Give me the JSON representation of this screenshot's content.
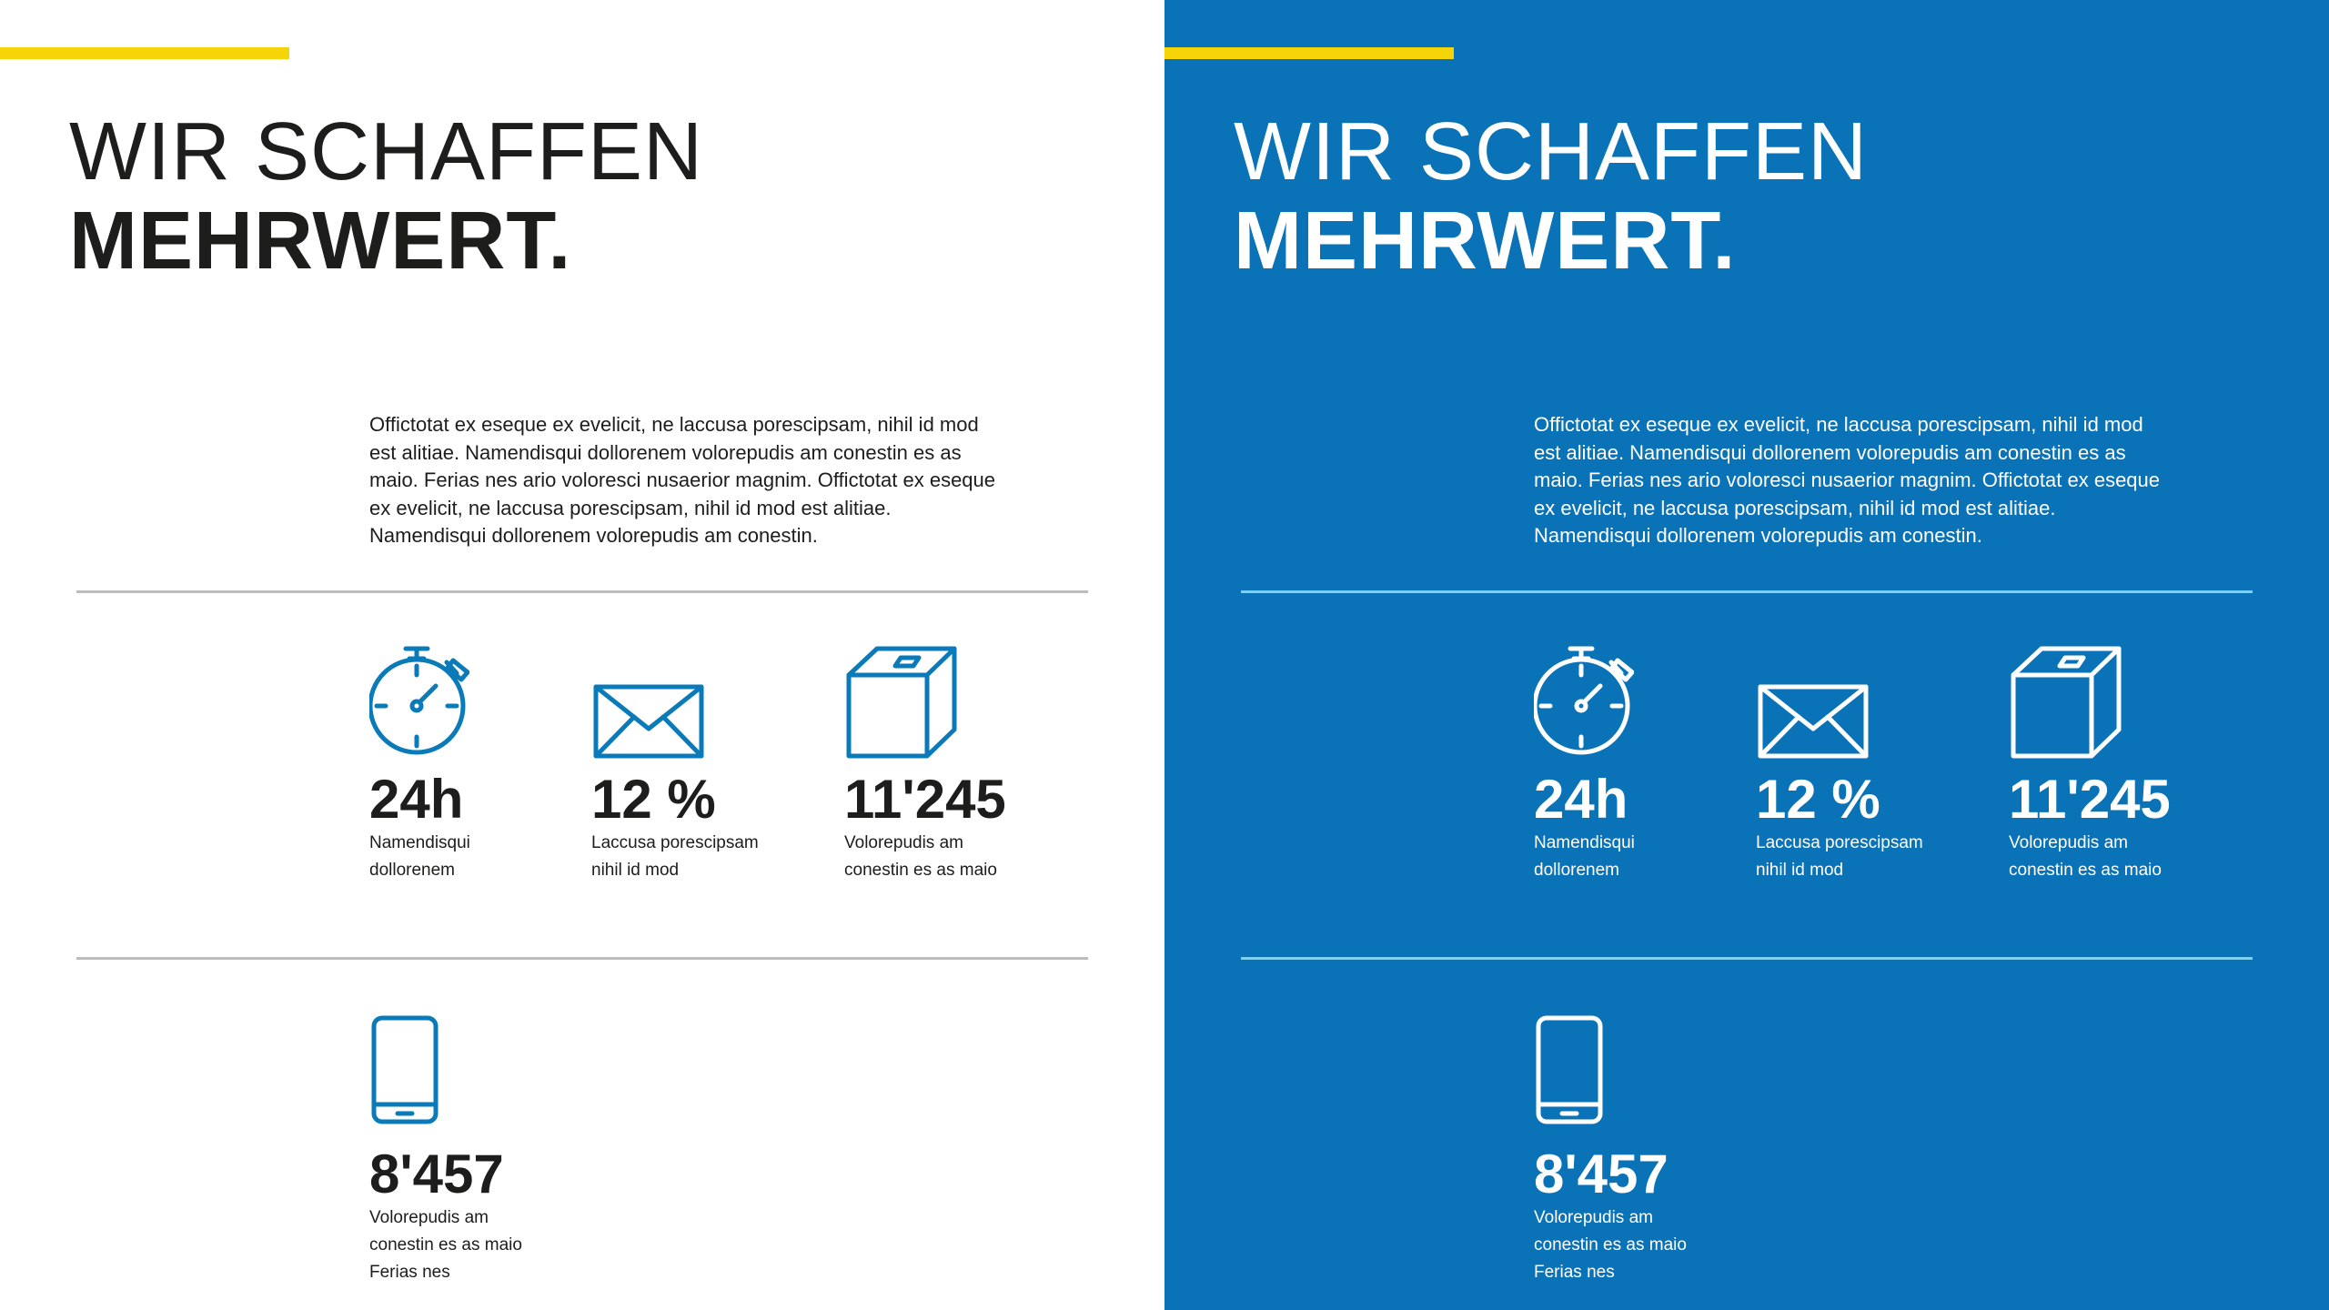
{
  "colors": {
    "accent_yellow": "#f5d50a",
    "brand_blue": "#0a72b7",
    "icon_blue": "#0a7bb8",
    "text_dark": "#1d1d1b",
    "divider_light": "#bdbdbd",
    "divider_dark": "#7fd0f0",
    "white": "#ffffff"
  },
  "panels": [
    {
      "variant": "light",
      "headline": {
        "line1": "WIR SCHAFFEN",
        "line2": "MEHRWERT."
      },
      "intro": "Offictotat ex eseque ex evelicit, ne laccusa porescipsam, nihil id mod est alitiae. Namendisqui dollorenem volorepudis am conestin es as maio. Ferias nes ario voloresci nusaerior magnim. Offictotat ex eseque ex evelicit, ne laccusa porescipsam, nihil id mod est alitiae. Namendisqui dollorenem volorepudis am conestin.",
      "stats": [
        {
          "icon": "stopwatch-icon",
          "value": "24h",
          "caption": "Namendisqui\ndollorenem"
        },
        {
          "icon": "envelope-icon",
          "value": "12 %",
          "caption": "Laccusa porescipsam\nnihil id mod"
        },
        {
          "icon": "box-icon",
          "value": "11'245",
          "caption": "Volorepudis am\nconestin es as maio"
        },
        {
          "icon": "smartphone-icon",
          "value": "8'457",
          "caption": "Volorepudis am\nconestin es as maio\nFerias nes"
        }
      ]
    },
    {
      "variant": "dark",
      "headline": {
        "line1": "WIR SCHAFFEN",
        "line2": "MEHRWERT."
      },
      "intro": "Offictotat ex eseque ex evelicit, ne laccusa porescipsam, nihil id mod est alitiae. Namendisqui dollorenem volorepudis am conestin es as maio. Ferias nes ario voloresci nusaerior magnim. Offictotat ex eseque ex evelicit, ne laccusa porescipsam, nihil id mod est alitiae. Namendisqui dollorenem volorepudis am conestin.",
      "stats": [
        {
          "icon": "stopwatch-icon",
          "value": "24h",
          "caption": "Namendisqui\ndollorenem"
        },
        {
          "icon": "envelope-icon",
          "value": "12 %",
          "caption": "Laccusa porescipsam\nnihil id mod"
        },
        {
          "icon": "box-icon",
          "value": "11'245",
          "caption": "Volorepudis am\nconestin es as maio"
        },
        {
          "icon": "smartphone-icon",
          "value": "8'457",
          "caption": "Volorepudis am\nconestin es as maio\nFerias nes"
        }
      ]
    }
  ]
}
